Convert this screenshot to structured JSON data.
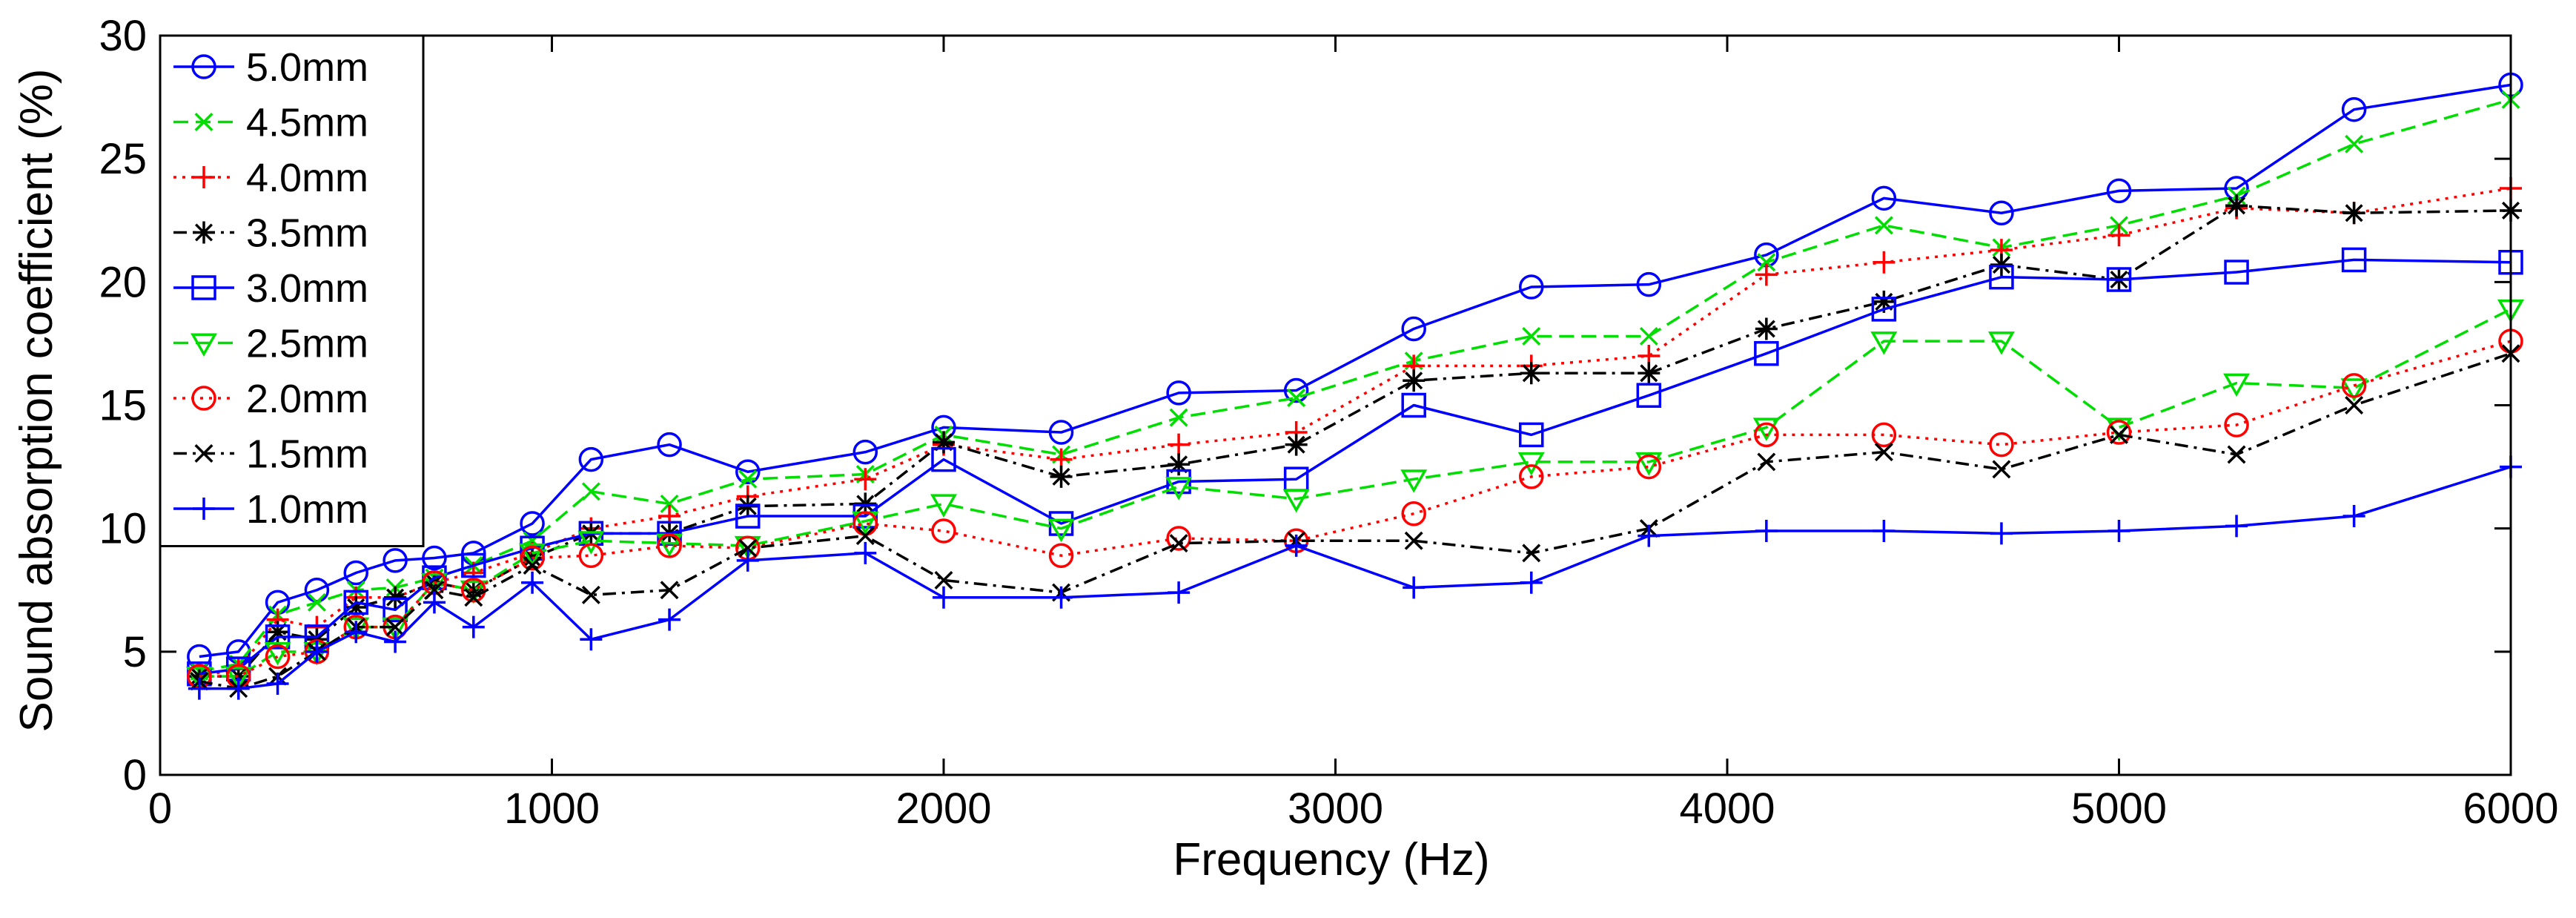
{
  "chart_data": {
    "type": "line",
    "title": "",
    "xlabel": "Frequency (Hz)",
    "ylabel": "Sound absorption coefficient (%)",
    "xlim": [
      0,
      6000
    ],
    "ylim": [
      0,
      30
    ],
    "xticks": [
      0,
      1000,
      2000,
      3000,
      4000,
      5000,
      6000
    ],
    "yticks": [
      0,
      5,
      10,
      15,
      20,
      25,
      30
    ],
    "grid": false,
    "legend_position": "top-left",
    "x": [
      100,
      200,
      300,
      400,
      500,
      600,
      700,
      800,
      950,
      1100,
      1300,
      1500,
      1800,
      2000,
      2300,
      2600,
      2900,
      3200,
      3500,
      3800,
      4100,
      4400,
      4700,
      5000,
      5300,
      5600,
      6000
    ],
    "series": [
      {
        "name": "5.0mm",
        "color": "#0000ff",
        "dash": "solid",
        "marker": "circle",
        "values": [
          4.8,
          5.0,
          7.0,
          7.5,
          8.2,
          8.7,
          8.8,
          9.0,
          10.2,
          12.8,
          13.4,
          12.3,
          13.1,
          14.1,
          13.9,
          15.5,
          15.6,
          18.1,
          19.8,
          19.9,
          21.1,
          23.4,
          22.8,
          23.7,
          23.8,
          27.0,
          28.0
        ]
      },
      {
        "name": "4.5mm",
        "color": "#00dd00",
        "dash": "dashed",
        "marker": "x",
        "values": [
          4.2,
          4.5,
          6.5,
          7.0,
          7.5,
          7.6,
          8.0,
          8.5,
          9.5,
          11.5,
          11.0,
          12.0,
          12.2,
          13.8,
          13.0,
          14.5,
          15.3,
          16.8,
          17.8,
          17.8,
          20.8,
          22.3,
          21.4,
          22.3,
          23.5,
          25.6,
          27.4
        ]
      },
      {
        "name": "4.0mm",
        "color": "#ff0000",
        "dash": "dotted",
        "marker": "plus",
        "values": [
          4.0,
          4.3,
          6.3,
          6.0,
          7.2,
          7.2,
          7.8,
          8.2,
          9.0,
          10.0,
          10.5,
          11.3,
          12.0,
          13.4,
          12.8,
          13.4,
          13.9,
          16.6,
          16.6,
          17.0,
          20.3,
          20.8,
          21.3,
          21.9,
          23.0,
          22.8,
          23.8
        ]
      },
      {
        "name": "3.5mm",
        "color": "#000000",
        "dash": "dashdot",
        "marker": "star",
        "values": [
          4.0,
          4.0,
          5.8,
          5.5,
          6.8,
          7.2,
          7.8,
          7.5,
          8.8,
          9.8,
          9.8,
          10.9,
          11.0,
          13.5,
          12.1,
          12.6,
          13.4,
          16.0,
          16.3,
          16.3,
          18.1,
          19.2,
          20.7,
          20.1,
          23.1,
          22.8,
          22.9
        ]
      },
      {
        "name": "3.0mm",
        "color": "#0000ff",
        "dash": "solid",
        "marker": "square",
        "values": [
          4.1,
          4.3,
          5.6,
          5.6,
          7.0,
          6.7,
          8.0,
          8.5,
          9.2,
          9.8,
          9.8,
          10.5,
          10.5,
          12.8,
          10.2,
          11.9,
          12.0,
          15.0,
          13.8,
          15.4,
          17.1,
          18.9,
          20.2,
          20.1,
          20.4,
          20.9,
          20.8
        ]
      },
      {
        "name": "2.5mm",
        "color": "#00dd00",
        "dash": "dashed",
        "marker": "triangle-down",
        "values": [
          4.0,
          4.0,
          5.0,
          5.0,
          6.0,
          6.0,
          7.8,
          7.5,
          9.0,
          9.5,
          9.4,
          9.3,
          10.3,
          11.0,
          10.0,
          11.7,
          11.2,
          12.0,
          12.7,
          12.7,
          14.1,
          17.6,
          17.6,
          14.1,
          15.9,
          15.7,
          18.9
        ]
      },
      {
        "name": "2.0mm",
        "color": "#ff0000",
        "dash": "dotted",
        "marker": "circle",
        "values": [
          4.0,
          4.0,
          4.8,
          5.0,
          6.0,
          6.0,
          7.8,
          7.5,
          8.8,
          8.9,
          9.3,
          9.2,
          10.2,
          9.9,
          8.9,
          9.6,
          9.5,
          10.6,
          12.1,
          12.5,
          13.8,
          13.8,
          13.4,
          13.9,
          14.2,
          15.8,
          17.6
        ]
      },
      {
        "name": "1.5mm",
        "color": "#000000",
        "dash": "dashdot",
        "marker": "x",
        "values": [
          3.8,
          3.5,
          4.0,
          5.0,
          6.0,
          6.0,
          7.5,
          7.2,
          8.5,
          7.3,
          7.5,
          9.2,
          9.7,
          7.9,
          7.4,
          9.4,
          9.5,
          9.5,
          9.0,
          10.0,
          12.7,
          13.1,
          12.4,
          13.8,
          13.0,
          15.0,
          17.1
        ]
      },
      {
        "name": "1.0mm",
        "color": "#0000ff",
        "dash": "solid",
        "marker": "plus",
        "values": [
          3.5,
          3.5,
          3.7,
          5.0,
          5.8,
          5.4,
          7.0,
          6.0,
          7.8,
          5.5,
          6.3,
          8.7,
          9.0,
          7.2,
          7.2,
          7.4,
          9.3,
          7.6,
          7.8,
          9.7,
          9.9,
          9.9,
          9.8,
          9.9,
          10.1,
          10.5,
          12.5
        ]
      }
    ]
  }
}
